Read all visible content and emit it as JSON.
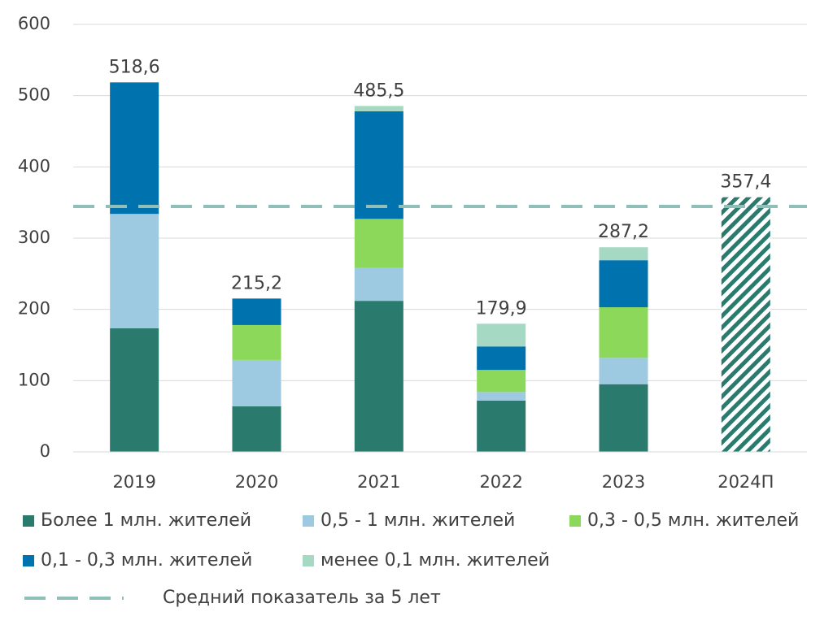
{
  "chart_data": {
    "type": "stacked_bar",
    "categories": [
      "2019",
      "2020",
      "2021",
      "2022",
      "2023",
      "2024П"
    ],
    "series": [
      {
        "name": "Более 1 млн. жителей",
        "color": "#2b7a6e",
        "values": [
          173.4,
          64,
          212,
          72,
          95,
          null
        ]
      },
      {
        "name": "0,5 - 1 млн. жителей",
        "color": "#9ecae1",
        "values": [
          160.6,
          65,
          46,
          12,
          37,
          null
        ]
      },
      {
        "name": "0,3 - 0,5 млн. жителей",
        "color": "#8cd85a",
        "values": [
          0,
          49,
          69,
          31,
          71,
          null
        ]
      },
      {
        "name": "0,1 - 0,3 млн. жителей",
        "color": "#0073ae",
        "values": [
          184.6,
          37.2,
          151,
          33,
          66,
          null
        ]
      },
      {
        "name": "менее 0,1 млн. жителей",
        "color": "#a6d9c4",
        "values": [
          0,
          0,
          7.5,
          31.9,
          18.2,
          null
        ]
      }
    ],
    "totals": {
      "values": [
        518.6,
        215.2,
        485.5,
        179.9,
        287.2,
        357.4
      ],
      "value_labels": [
        "518,6",
        "215,2",
        "485,5",
        "179,9",
        "287,2",
        "357,4"
      ],
      "forecast_color": "#2b7a6e"
    },
    "average": {
      "name": "Средний показатель за 5 лет",
      "value": 344.5,
      "color": "#8fbfb8"
    },
    "ylim": [
      0,
      600
    ],
    "yticks": [
      0,
      100,
      200,
      300,
      400,
      500,
      600
    ],
    "grid": true
  }
}
